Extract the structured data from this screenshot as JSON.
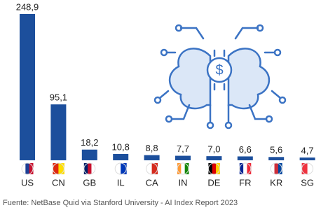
{
  "chart_data": {
    "type": "bar",
    "categories": [
      "US",
      "CN",
      "GB",
      "IL",
      "CA",
      "IN",
      "DE",
      "FR",
      "KR",
      "SG"
    ],
    "values": [
      248.9,
      95.1,
      18.2,
      10.8,
      8.8,
      7.7,
      7.0,
      6.6,
      5.6,
      4.7
    ],
    "value_labels": [
      "248,9",
      "95,1",
      "18,2",
      "10,8",
      "8,8",
      "7,7",
      "7,0",
      "6,6",
      "5,6",
      "4,7"
    ],
    "color": "#1c4f9c",
    "source": "Fuente: NetBase Quid via Stanford University - AI Index Report 2023"
  }
}
